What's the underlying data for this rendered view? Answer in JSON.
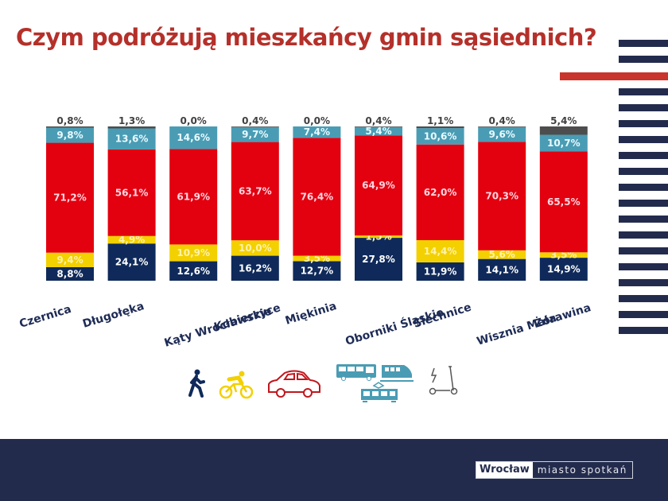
{
  "title": "Czym podróżują mieszkańcy gmin sąsiednich?",
  "colors": {
    "walk": "#0f2a5a",
    "bike": "#f3d000",
    "car": "#e3000f",
    "public_transport": "#4a9cb4",
    "other": "#4d4d4d",
    "title": "#b5302a",
    "stripe_dark": "#232b4d",
    "stripe_red": "#c9342c",
    "footer": "#232b4d"
  },
  "chart_data": {
    "type": "bar",
    "stacked": true,
    "title": "Czym podróżują mieszkańcy gmin sąsiednich?",
    "xlabel": "",
    "ylabel": "",
    "ylim": [
      0,
      100
    ],
    "grid": false,
    "legend": "bottom (icons)",
    "categories": [
      "Czernica",
      "Długołęka",
      "Kąty Wrocławskie",
      "Kobierzyce",
      "Miękinia",
      "Oborniki Śląskie",
      "Siechnice",
      "Wisznia Mała",
      "Żórawina"
    ],
    "series": [
      {
        "name": "Pieszo",
        "key": "walk",
        "values": [
          8.8,
          24.1,
          12.6,
          16.2,
          12.7,
          27.8,
          11.9,
          14.1,
          14.9
        ],
        "labels": [
          "8,8%",
          "24,1%",
          "12,6%",
          "16,2%",
          "12,7%",
          "27,8%",
          "11,9%",
          "14,1%",
          "14,9%"
        ]
      },
      {
        "name": "Rower",
        "key": "bike",
        "values": [
          9.4,
          4.9,
          10.9,
          10.0,
          3.5,
          1.5,
          14.4,
          5.6,
          3.5
        ],
        "labels": [
          "9,4%",
          "4,9%",
          "10,9%",
          "10,0%",
          "3,5%",
          "1,5%",
          "14,4%",
          "5,6%",
          "3,5%"
        ]
      },
      {
        "name": "Samochód",
        "key": "car",
        "values": [
          71.2,
          56.1,
          61.9,
          63.7,
          76.4,
          64.9,
          62.0,
          70.3,
          65.5
        ],
        "labels": [
          "71,2%",
          "56,1%",
          "61,9%",
          "63,7%",
          "76,4%",
          "64,9%",
          "62,0%",
          "70,3%",
          "65,5%"
        ]
      },
      {
        "name": "Komunikacja publiczna",
        "key": "public_transport",
        "values": [
          9.8,
          13.6,
          14.6,
          9.7,
          7.4,
          5.4,
          10.6,
          9.6,
          10.7
        ],
        "labels": [
          "9,8%",
          "13,6%",
          "14,6%",
          "9,7%",
          "7,4%",
          "5,4%",
          "10,6%",
          "9,6%",
          "10,7%"
        ]
      },
      {
        "name": "Hulajnoga elektryczna / inne",
        "key": "other",
        "values": [
          0.8,
          1.3,
          0.0,
          0.4,
          0.0,
          0.4,
          1.1,
          0.4,
          5.4
        ],
        "labels": [
          "0,8%",
          "1,3%",
          "0,0%",
          "0,4%",
          "0,0%",
          "0,4%",
          "1,1%",
          "0,4%",
          "5,4%"
        ]
      }
    ]
  },
  "legend_icons": [
    {
      "name": "walk-icon",
      "label": "Pieszo"
    },
    {
      "name": "bike-icon",
      "label": "Rower"
    },
    {
      "name": "car-icon",
      "label": "Samochód"
    },
    {
      "name": "bus-icon",
      "label": "Autobus"
    },
    {
      "name": "train-icon",
      "label": "Pociąg"
    },
    {
      "name": "tram-icon",
      "label": "Tramwaj"
    },
    {
      "name": "e-scooter-icon",
      "label": "Hulajnoga elektryczna"
    }
  ],
  "footer": {
    "logo_main": "Wrocław",
    "logo_tagline": "miasto spotkań"
  }
}
